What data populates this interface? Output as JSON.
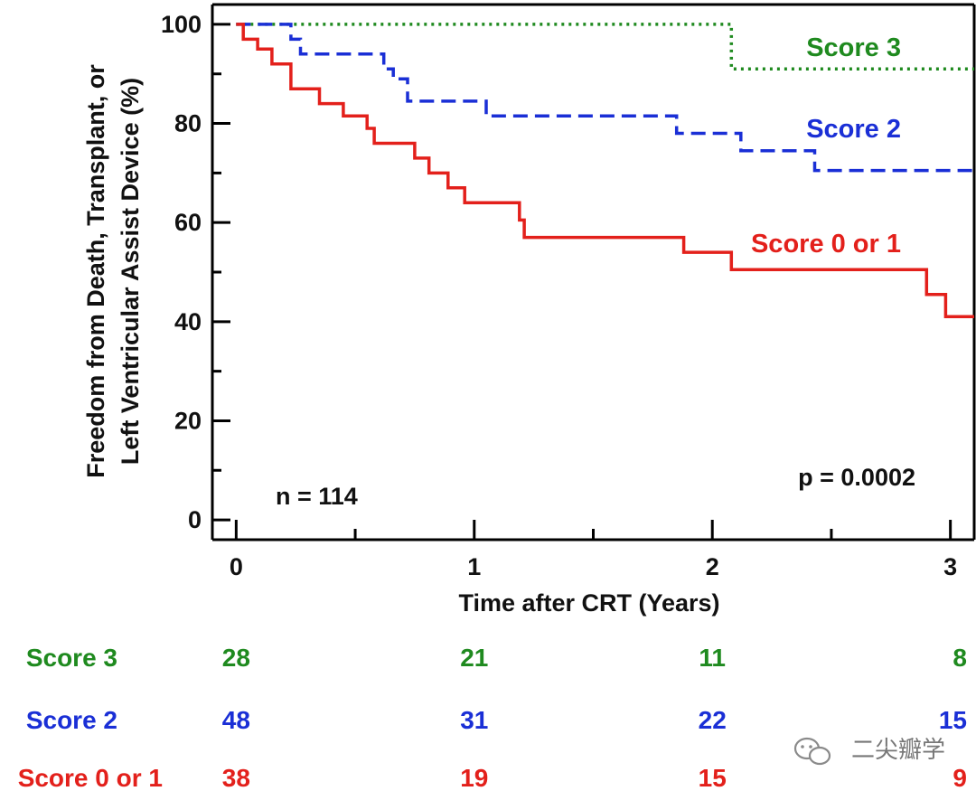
{
  "chart_data": {
    "type": "line",
    "subtype": "kaplan-meier",
    "title": "",
    "xlabel": "Time after CRT (Years)",
    "ylabel": [
      "Freedom from Death, Transplant, or",
      "Left Ventricular Assist Device (%)"
    ],
    "xlim": [
      -0.1,
      3.1
    ],
    "ylim": [
      -4,
      104
    ],
    "x_ticks": [
      0,
      1,
      2,
      3
    ],
    "x_minor_ticks": [
      0.5,
      1.5,
      2.5
    ],
    "y_ticks": [
      0,
      20,
      40,
      60,
      80,
      100
    ],
    "y_minor_ticks": [
      10,
      30,
      50,
      70,
      90
    ],
    "grid": false,
    "annotations": {
      "n": "n = 114",
      "p": "p = 0.0002"
    },
    "series": [
      {
        "name": "Score 3",
        "label": "Score 3",
        "color": "#1f8a1f",
        "style": "dotted",
        "x": [
          0,
          2.08,
          2.08,
          3.1
        ],
        "y": [
          100,
          100,
          91,
          91
        ]
      },
      {
        "name": "Score 2",
        "label": "Score 2",
        "color": "#1a2fd6",
        "style": "dashed",
        "x": [
          0,
          0.23,
          0.23,
          0.27,
          0.27,
          0.62,
          0.62,
          0.66,
          0.66,
          0.72,
          0.72,
          1.05,
          1.05,
          1.85,
          1.85,
          2.12,
          2.12,
          2.43,
          2.43,
          3.1
        ],
        "y": [
          100,
          100,
          97,
          97,
          94,
          94,
          91,
          91,
          89,
          89,
          84.5,
          84.5,
          81.5,
          81.5,
          78,
          78,
          74.5,
          74.5,
          70.5,
          70.5
        ]
      },
      {
        "name": "Score 0 or 1",
        "label": "Score 0 or 1",
        "color": "#e3201b",
        "style": "solid",
        "x": [
          0,
          0.03,
          0.03,
          0.09,
          0.09,
          0.15,
          0.15,
          0.23,
          0.23,
          0.35,
          0.35,
          0.45,
          0.45,
          0.55,
          0.55,
          0.58,
          0.58,
          0.75,
          0.75,
          0.81,
          0.81,
          0.89,
          0.89,
          0.96,
          0.96,
          1.19,
          1.19,
          1.21,
          1.21,
          1.88,
          1.88,
          2.08,
          2.08,
          2.9,
          2.9,
          2.98,
          2.98,
          3.1
        ],
        "y": [
          100,
          100,
          97,
          97,
          95,
          95,
          92,
          92,
          87,
          87,
          84,
          84,
          81.5,
          81.5,
          79,
          79,
          76,
          76,
          73,
          73,
          70,
          70,
          67,
          67,
          64,
          64,
          60.5,
          60.5,
          57,
          57,
          54,
          54,
          50.5,
          50.5,
          45.5,
          45.5,
          41,
          41
        ]
      }
    ],
    "risk_table": {
      "times": [
        0,
        1,
        2,
        3
      ],
      "rows": [
        {
          "label": "Score 3",
          "color": "#1f8a1f",
          "values": [
            "28",
            "21",
            "11",
            "8"
          ]
        },
        {
          "label": "Score 2",
          "color": "#1a2fd6",
          "values": [
            "48",
            "31",
            "22",
            "15"
          ]
        },
        {
          "label": "Score 0 or 1",
          "color": "#e3201b",
          "values": [
            "38",
            "19",
            "15",
            "9"
          ]
        }
      ]
    }
  },
  "watermark": {
    "text": "二尖瓣学",
    "icon": "wechat-icon"
  }
}
